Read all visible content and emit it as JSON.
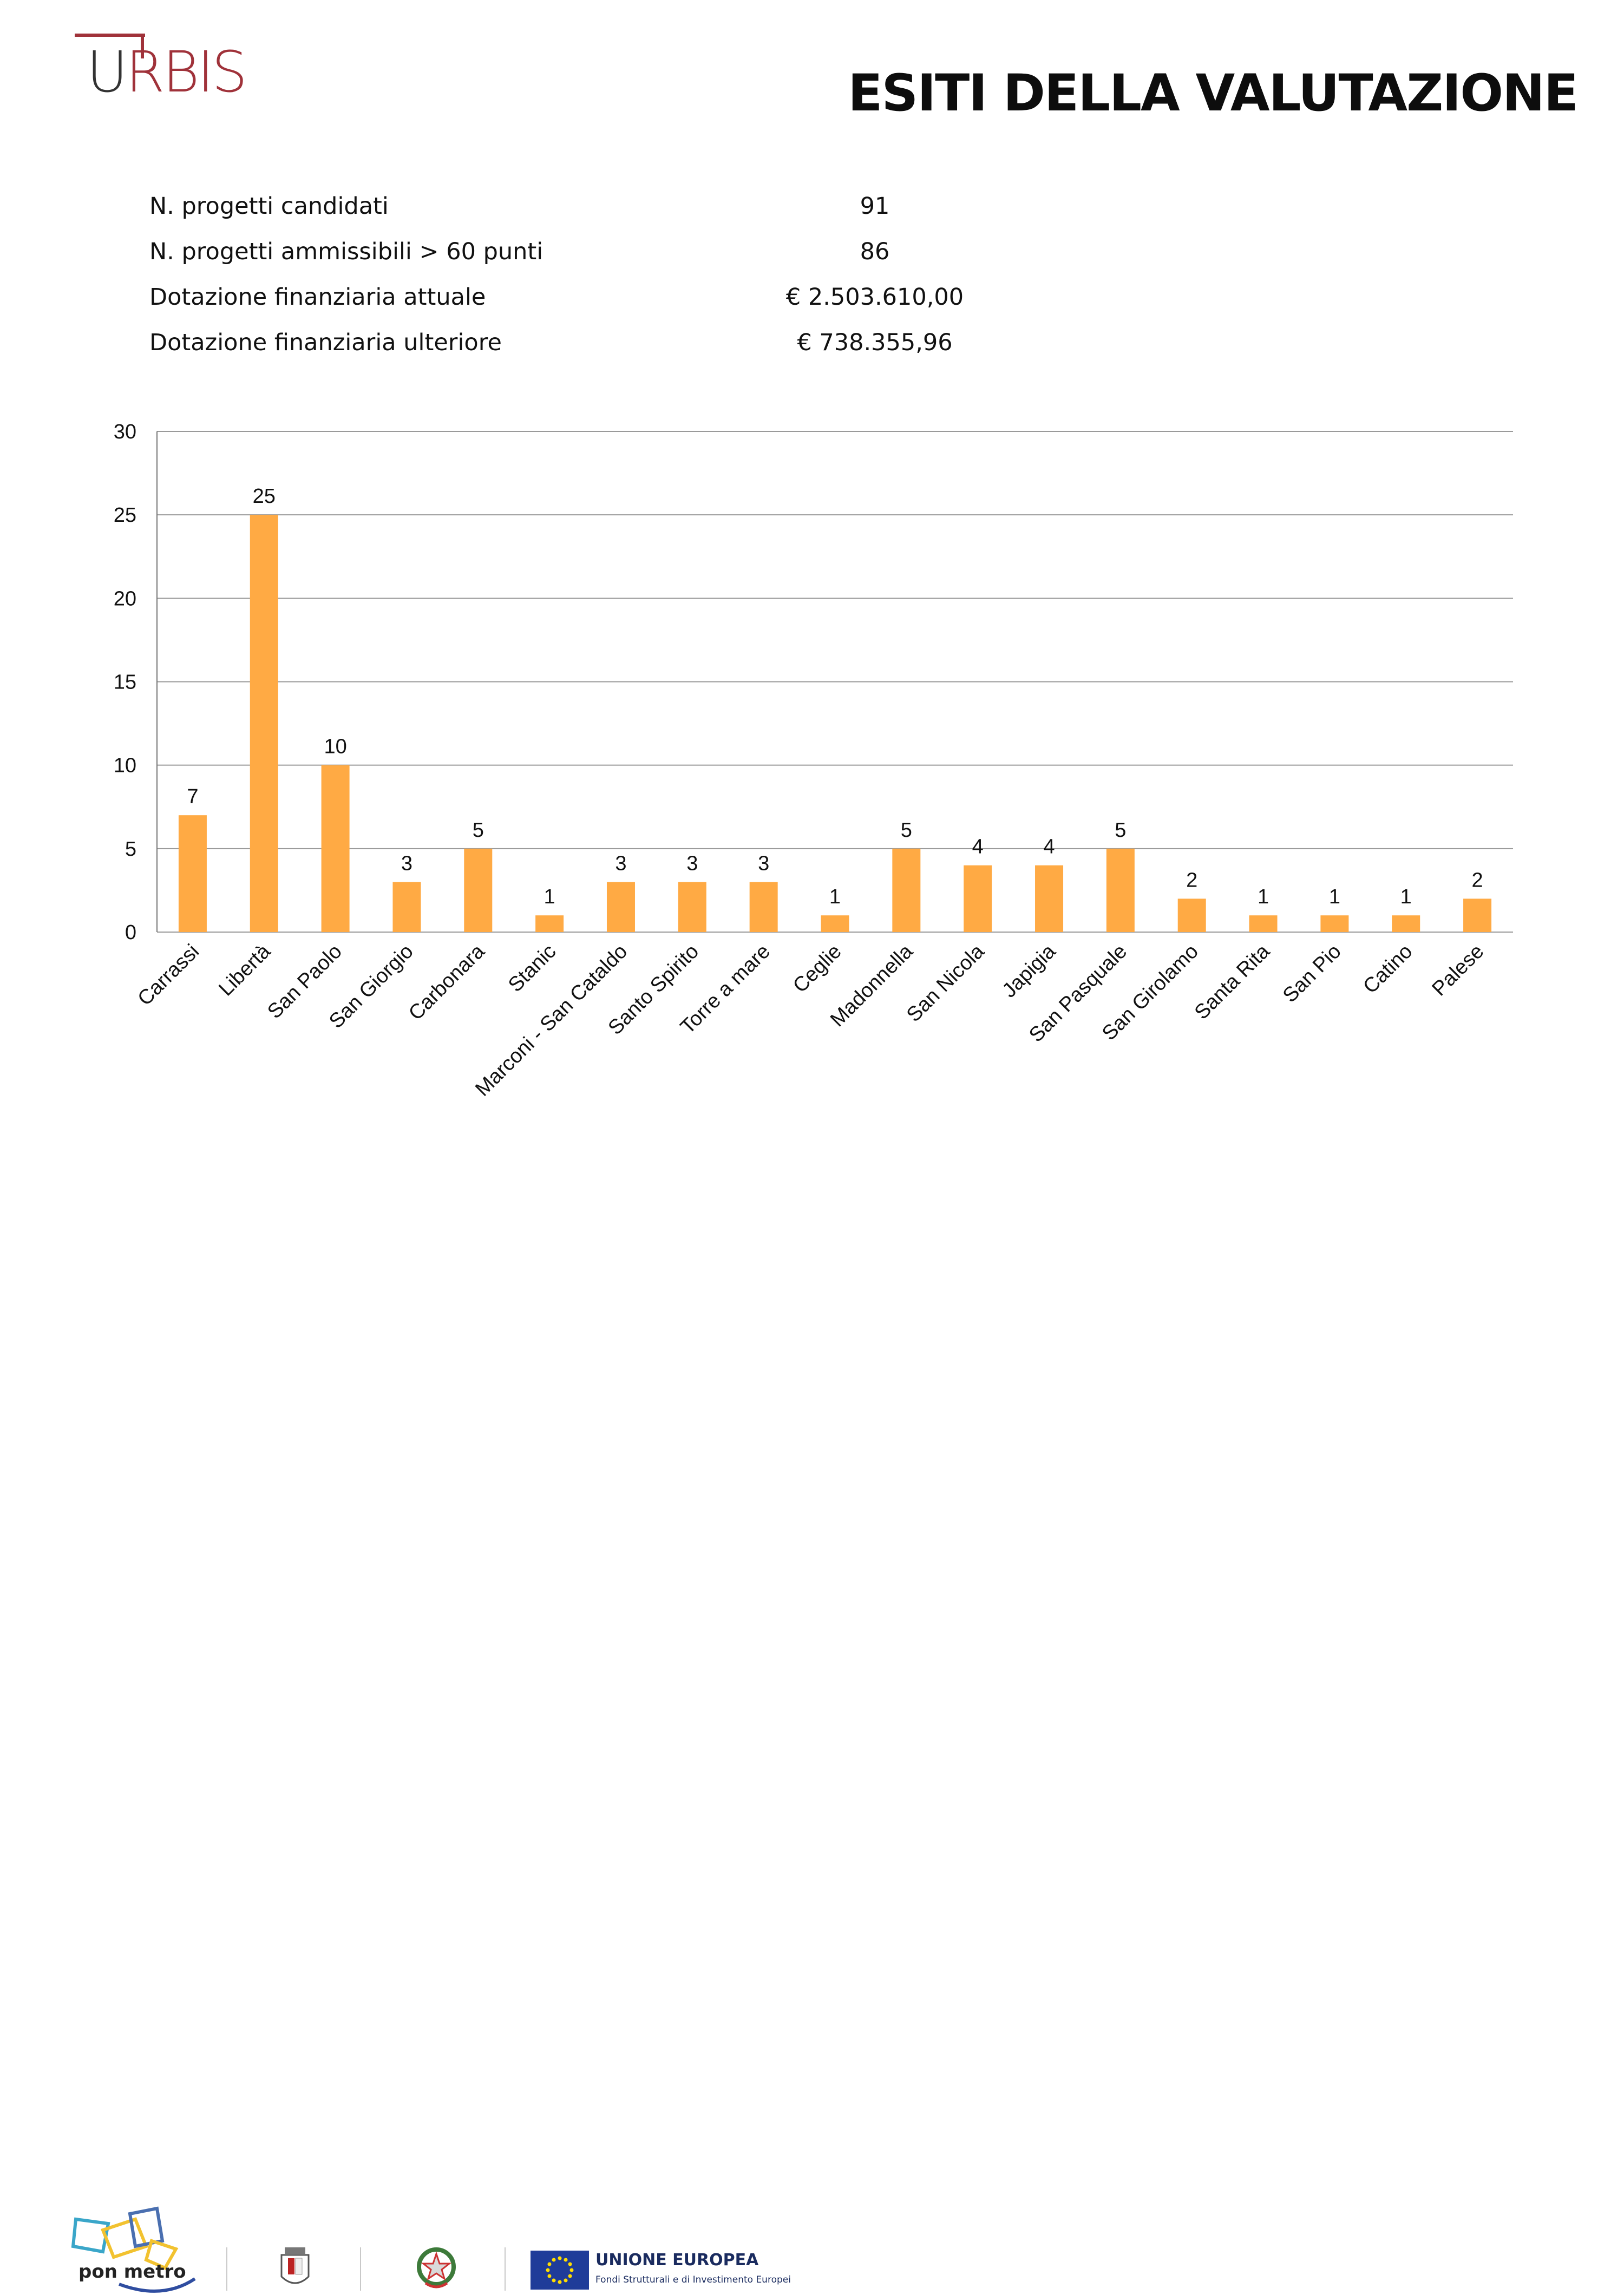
{
  "header": {
    "logo_text": "URBIS",
    "title": "ESITI DELLA VALUTAZIONE"
  },
  "summary": [
    {
      "label": "N. progetti candidati",
      "value": "91"
    },
    {
      "label": "N. progetti ammissibili > 60 punti",
      "value": "86"
    },
    {
      "label": "Dotazione finanziaria attuale",
      "value": "€ 2.503.610,00"
    },
    {
      "label": "Dotazione finanziaria ulteriore",
      "value": "€ 738.355,96"
    }
  ],
  "chart_data": {
    "type": "bar",
    "categories": [
      "Carrassi",
      "Libertà",
      "San Paolo",
      "San Giorgio",
      "Carbonara",
      "Stanic",
      "Marconi - San Cataldo",
      "Santo Spirito",
      "Torre a mare",
      "Ceglie",
      "Madonnella",
      "San Nicola",
      "Japigia",
      "San Pasquale",
      "San Girolamo",
      "Santa Rita",
      "San Pio",
      "Catino",
      "Palese"
    ],
    "values": [
      7,
      25,
      10,
      3,
      5,
      1,
      3,
      3,
      3,
      1,
      5,
      4,
      4,
      5,
      2,
      1,
      1,
      1,
      2
    ],
    "ylim": [
      0,
      30
    ],
    "yticks": [
      0,
      5,
      10,
      15,
      20,
      25,
      30
    ],
    "grid": true,
    "data_labels": true,
    "bar_color": "#FFAA44",
    "grid_color": "#9a9a9a"
  },
  "footer": {
    "pon_text": "pon metro",
    "eu_title": "UNIONE EUROPEA",
    "eu_subtitle": "Fondi Strutturali e di Investimento Europei",
    "logos": [
      "pon-metro-logo",
      "comune-di-bari-crest",
      "italian-republic-emblem",
      "eu-flag"
    ]
  }
}
